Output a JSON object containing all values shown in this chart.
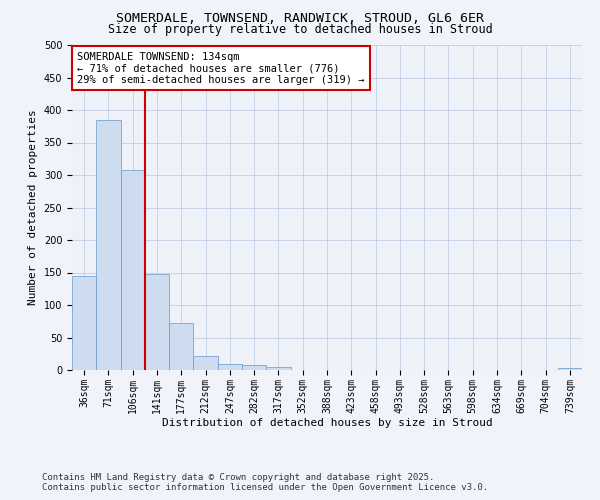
{
  "title_line1": "SOMERDALE, TOWNSEND, RANDWICK, STROUD, GL6 6ER",
  "title_line2": "Size of property relative to detached houses in Stroud",
  "xlabel": "Distribution of detached houses by size in Stroud",
  "ylabel": "Number of detached properties",
  "categories": [
    "36sqm",
    "71sqm",
    "106sqm",
    "141sqm",
    "177sqm",
    "212sqm",
    "247sqm",
    "282sqm",
    "317sqm",
    "352sqm",
    "388sqm",
    "423sqm",
    "458sqm",
    "493sqm",
    "528sqm",
    "563sqm",
    "598sqm",
    "634sqm",
    "669sqm",
    "704sqm",
    "739sqm"
  ],
  "values": [
    144,
    385,
    308,
    148,
    72,
    22,
    10,
    8,
    4,
    0,
    0,
    0,
    0,
    0,
    0,
    0,
    0,
    0,
    0,
    0,
    3
  ],
  "bar_color": "#cddcee",
  "bar_edge_color": "#6699cc",
  "vline_color": "#cc0000",
  "vline_index": 3,
  "annotation_text": "SOMERDALE TOWNSEND: 134sqm\n← 71% of detached houses are smaller (776)\n29% of semi-detached houses are larger (319) →",
  "annotation_box_edgecolor": "#cc0000",
  "annotation_box_facecolor": "#ffffff",
  "ylim": [
    0,
    500
  ],
  "yticks": [
    0,
    50,
    100,
    150,
    200,
    250,
    300,
    350,
    400,
    450,
    500
  ],
  "footer_line1": "Contains HM Land Registry data © Crown copyright and database right 2025.",
  "footer_line2": "Contains public sector information licensed under the Open Government Licence v3.0.",
  "bg_color": "#f0f4fa",
  "plot_bg_color": "#eef2f8",
  "grid_color": "#b8c8e0",
  "title_fontsize": 9.5,
  "subtitle_fontsize": 8.5,
  "axis_label_fontsize": 8,
  "tick_fontsize": 7,
  "annotation_fontsize": 7.5,
  "footer_fontsize": 6.5
}
